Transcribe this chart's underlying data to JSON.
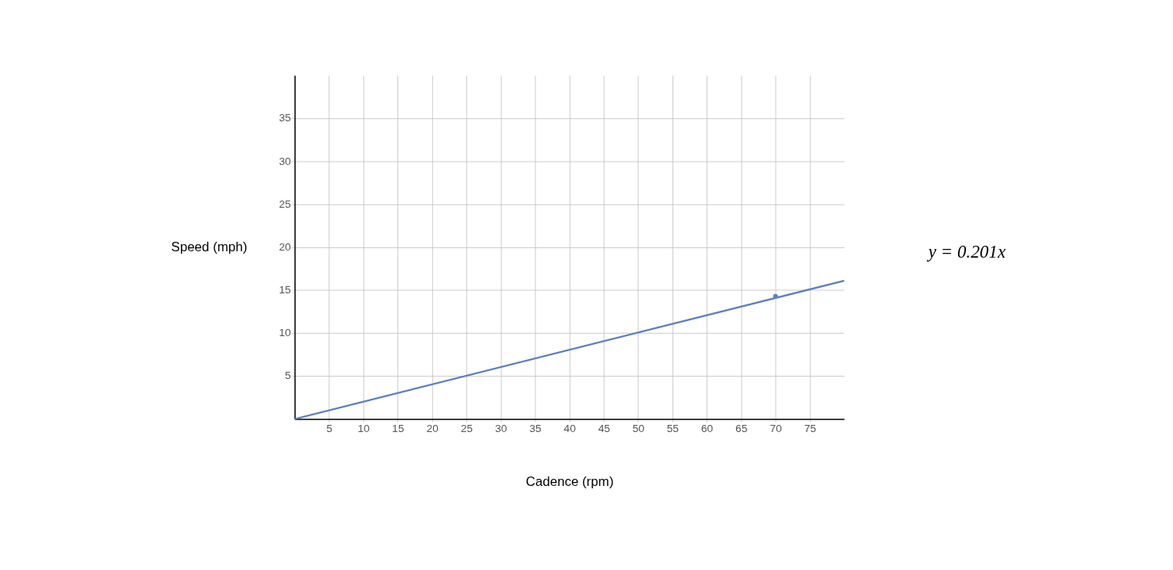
{
  "chart_data": {
    "type": "line",
    "xlabel": "Cadence (rpm)",
    "ylabel": "Speed (mph)",
    "xlim": [
      0,
      80
    ],
    "ylim": [
      0,
      40
    ],
    "xticks": [
      5,
      10,
      15,
      20,
      25,
      30,
      35,
      40,
      45,
      50,
      55,
      60,
      65,
      70,
      75
    ],
    "yticks": [
      5,
      10,
      15,
      20,
      25,
      30,
      35
    ],
    "grid": true,
    "series": [
      {
        "color": "#5b7fbf",
        "x": [
          0,
          80
        ],
        "values": [
          0,
          16.1
        ]
      },
      {
        "type": "scatter",
        "color": "#5b7fbf",
        "marker": "circle",
        "x": [
          70
        ],
        "values": [
          14.3
        ]
      }
    ],
    "annotations": [
      "y = 0.201x"
    ]
  }
}
